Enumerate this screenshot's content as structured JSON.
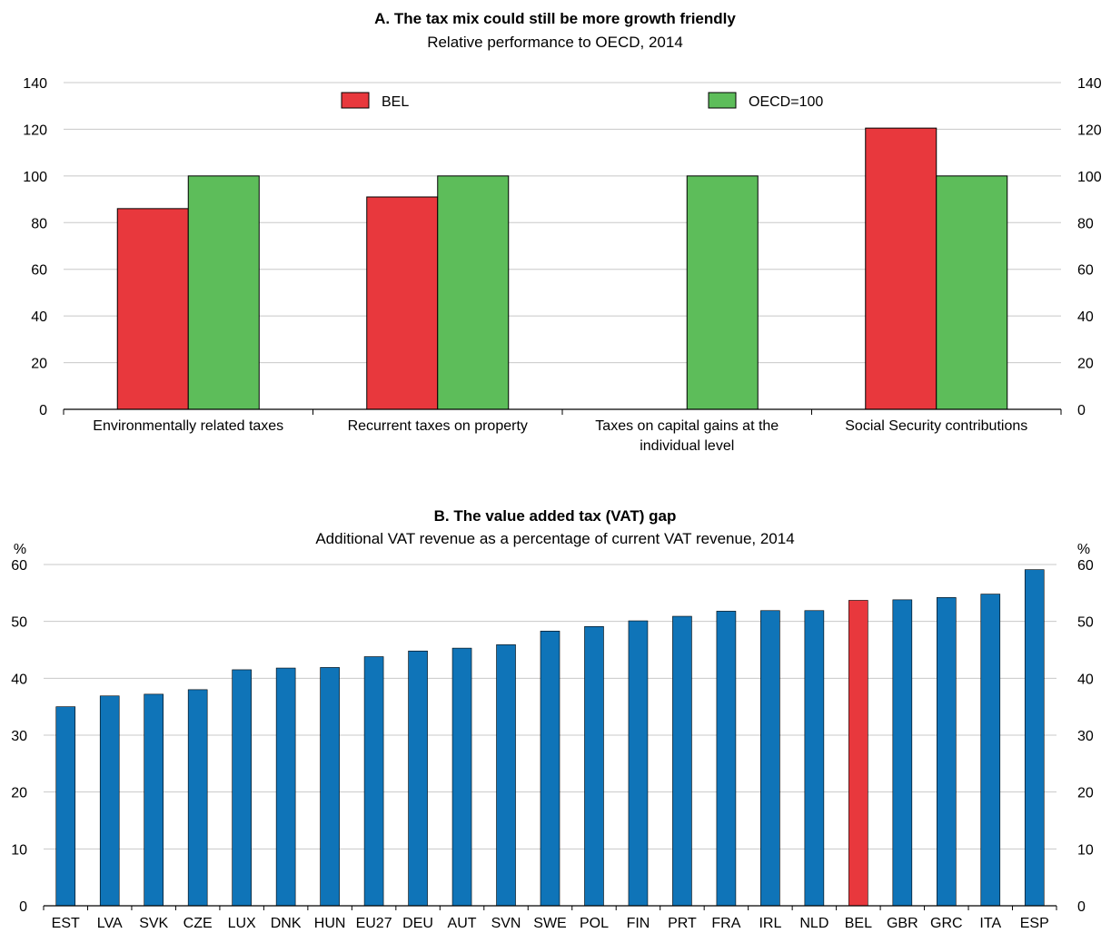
{
  "colors": {
    "bel": "#e8383d",
    "oecd": "#5dbd5a",
    "country": "#0f74b8",
    "highlight": "#e8383d",
    "grid": "#c8c8c8",
    "axis": "#000000"
  },
  "chart_data": [
    {
      "type": "bar",
      "title": "A. The tax mix could still be more growth friendly",
      "subtitle": "Relative performance to OECD, 2014",
      "categories": [
        [
          "Environmentally related taxes"
        ],
        [
          "Recurrent taxes  on property"
        ],
        [
          "Taxes on capital gains at the",
          "individual level"
        ],
        [
          "Social Security contributions"
        ]
      ],
      "series": [
        {
          "name": "BEL",
          "values": [
            86,
            91,
            null,
            120.5
          ]
        },
        {
          "name": "OECD=100",
          "values": [
            100,
            100,
            100,
            100
          ]
        }
      ],
      "ylim": [
        0,
        140
      ],
      "yticks": [
        0,
        20,
        40,
        60,
        80,
        100,
        120,
        140
      ],
      "grid": true,
      "legend": "top",
      "dual_axis_mirror": true
    },
    {
      "type": "bar",
      "title": "B. The value added tax (VAT) gap",
      "subtitle": "Additional VAT revenue as a percentage of current VAT revenue, 2014",
      "unit": "%",
      "categories": [
        "EST",
        "LVA",
        "SVK",
        "CZE",
        "LUX",
        "DNK",
        "HUN",
        "EU27",
        "DEU",
        "AUT",
        "SVN",
        "SWE",
        "POL",
        "FIN",
        "PRT",
        "FRA",
        "IRL",
        "NLD",
        "BEL",
        "GBR",
        "GRC",
        "ITA",
        "ESP"
      ],
      "values": [
        35,
        36.9,
        37.2,
        38,
        41.5,
        41.8,
        41.9,
        43.8,
        44.8,
        45.3,
        45.9,
        48.3,
        49.1,
        50.1,
        50.9,
        51.8,
        51.9,
        51.9,
        53.7,
        53.8,
        54.2,
        54.8,
        59.1
      ],
      "highlight": "BEL",
      "ylim": [
        0,
        60
      ],
      "yticks": [
        0,
        10,
        20,
        30,
        40,
        50,
        60
      ],
      "grid": true,
      "dual_axis_mirror": true
    }
  ]
}
